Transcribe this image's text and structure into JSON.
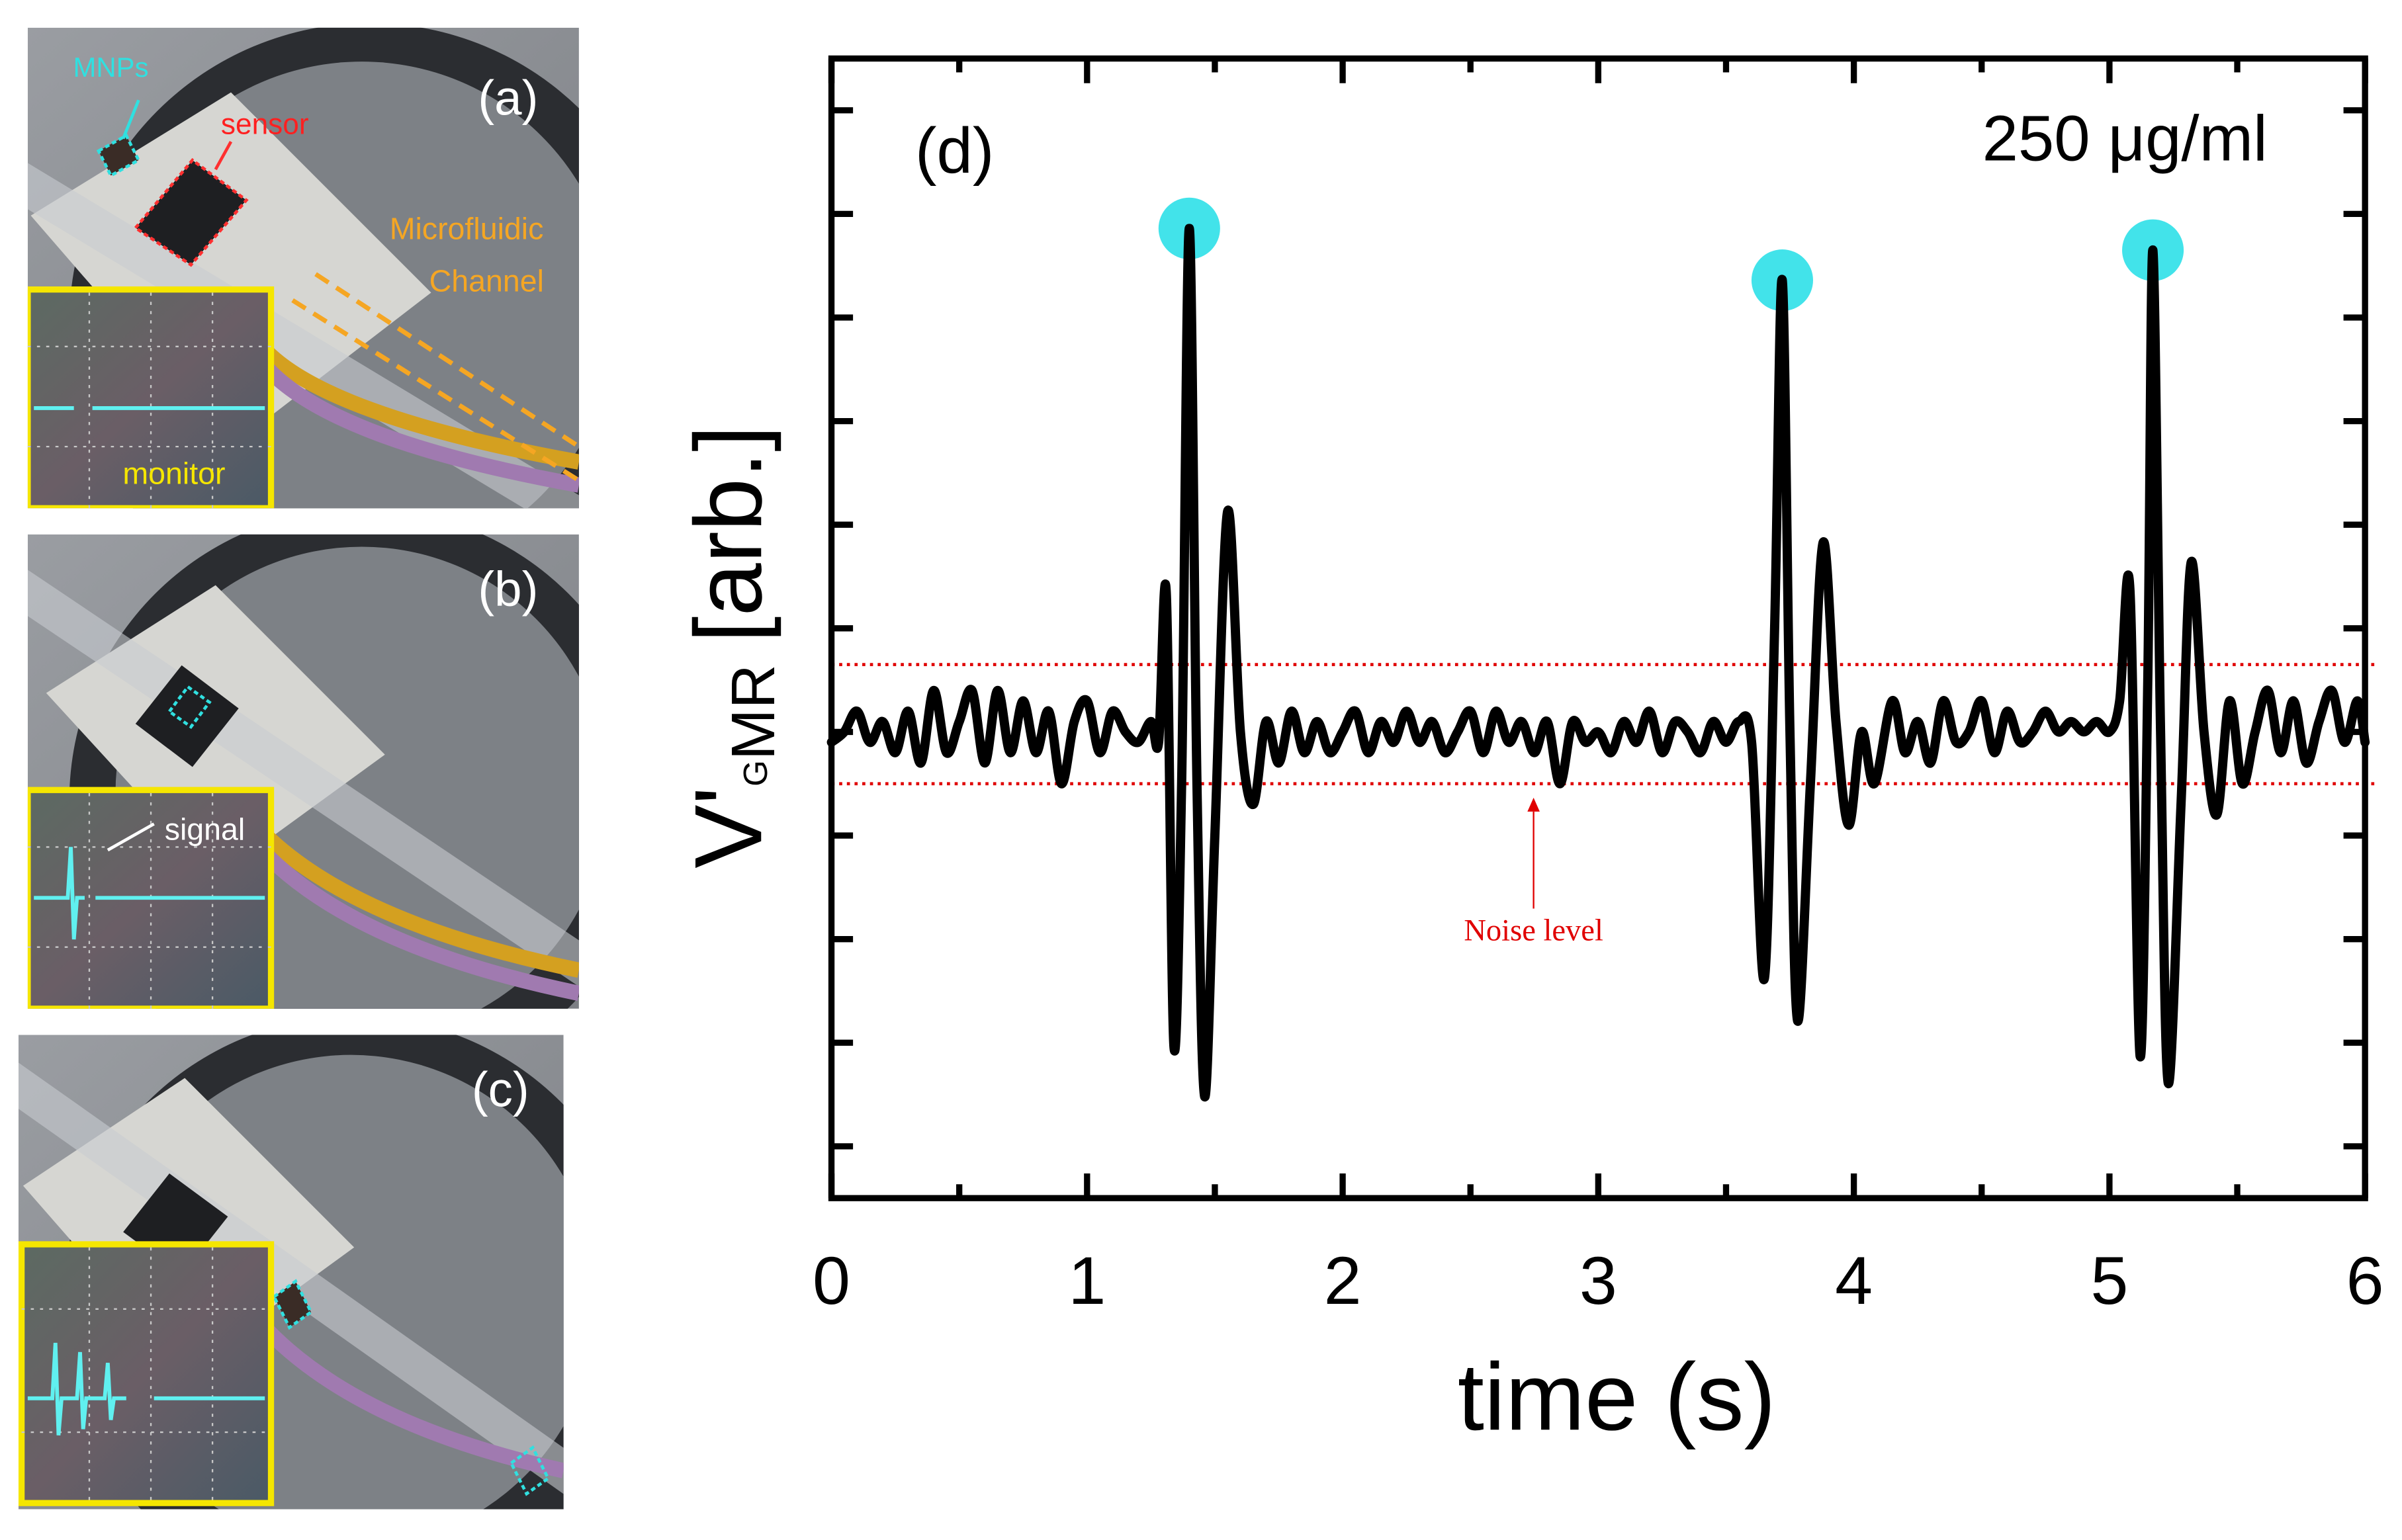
{
  "photo_panels": {
    "a": {
      "label": "(a)",
      "mnps": "MNPs",
      "sensor": "sensor",
      "channel": [
        "Microfluidic",
        "Channel"
      ],
      "monitor": "monitor"
    },
    "b": {
      "label": "(b)",
      "signal": "signal"
    },
    "c": {
      "label": "(c)"
    }
  },
  "chart_data": {
    "type": "line",
    "panel_label": "(d)",
    "concentration": "250 μg/ml",
    "x_label": "time (s)",
    "y_label": {
      "main": "V'",
      "sub_small": "G",
      "sub": "MR",
      "unit": "[arb.]"
    },
    "annotation": "Noise level",
    "xlim": [
      0,
      6
    ],
    "xticks": [
      0,
      1,
      2,
      3,
      4,
      5,
      6
    ],
    "xminor_ticks": [
      0.5,
      1.5,
      2.5,
      3.5,
      4.5,
      5.5
    ],
    "ylim": [
      0,
      11
    ],
    "yticks": [
      0.5,
      1.5,
      2.5,
      3.5,
      4.5,
      5.5,
      6.5,
      7.5,
      8.5,
      9.5,
      10.5
    ],
    "noise_lines": [
      5.15,
      4.0
    ],
    "noise_color": "#e00000",
    "color": "#000000",
    "x": [
      0,
      0.05,
      0.1,
      0.15,
      0.2,
      0.25,
      0.3,
      0.35,
      0.4,
      0.45,
      0.5,
      0.55,
      0.6,
      0.65,
      0.7,
      0.75,
      0.8,
      0.85,
      0.9,
      0.95,
      1.0,
      1.05,
      1.1,
      1.15,
      1.2,
      1.25,
      1.28,
      1.31,
      1.34,
      1.37,
      1.4,
      1.43,
      1.46,
      1.5,
      1.55,
      1.6,
      1.65,
      1.7,
      1.75,
      1.8,
      1.85,
      1.9,
      1.95,
      2.0,
      2.05,
      2.1,
      2.15,
      2.2,
      2.25,
      2.3,
      2.35,
      2.4,
      2.45,
      2.5,
      2.55,
      2.6,
      2.65,
      2.7,
      2.75,
      2.8,
      2.85,
      2.9,
      2.95,
      3.0,
      3.05,
      3.1,
      3.15,
      3.2,
      3.25,
      3.3,
      3.35,
      3.4,
      3.45,
      3.5,
      3.55,
      3.6,
      3.65,
      3.69,
      3.72,
      3.75,
      3.78,
      3.83,
      3.88,
      3.93,
      3.98,
      4.03,
      4.08,
      4.15,
      4.2,
      4.25,
      4.3,
      4.35,
      4.4,
      4.45,
      4.5,
      4.55,
      4.6,
      4.65,
      4.7,
      4.75,
      4.8,
      4.85,
      4.9,
      4.95,
      5.0,
      5.04,
      5.08,
      5.12,
      5.15,
      5.17,
      5.2,
      5.23,
      5.28,
      5.32,
      5.37,
      5.42,
      5.47,
      5.52,
      5.57,
      5.62,
      5.67,
      5.72,
      5.77,
      5.82,
      5.87,
      5.92,
      5.97,
      6.0
    ],
    "values": [
      4.4,
      4.5,
      4.7,
      4.4,
      4.6,
      4.3,
      4.7,
      4.2,
      4.9,
      4.3,
      4.6,
      4.9,
      4.2,
      4.9,
      4.3,
      4.8,
      4.3,
      4.7,
      4.0,
      4.6,
      4.8,
      4.3,
      4.7,
      4.5,
      4.4,
      4.6,
      4.4,
      5.84,
      1.46,
      4.0,
      9.36,
      4.0,
      0.98,
      3.5,
      6.63,
      4.5,
      3.8,
      4.6,
      4.2,
      4.7,
      4.3,
      4.6,
      4.3,
      4.5,
      4.7,
      4.3,
      4.6,
      4.4,
      4.7,
      4.4,
      4.6,
      4.3,
      4.5,
      4.7,
      4.3,
      4.7,
      4.4,
      4.6,
      4.3,
      4.6,
      4.0,
      4.6,
      4.4,
      4.5,
      4.3,
      4.6,
      4.4,
      4.7,
      4.3,
      4.6,
      4.5,
      4.3,
      4.6,
      4.4,
      4.6,
      4.4,
      2.12,
      5.5,
      8.86,
      4.5,
      1.71,
      4.0,
      6.33,
      4.6,
      3.6,
      4.5,
      4.0,
      4.8,
      4.3,
      4.6,
      4.2,
      4.8,
      4.4,
      4.5,
      4.8,
      4.3,
      4.7,
      4.4,
      4.5,
      4.7,
      4.5,
      4.6,
      4.5,
      4.6,
      4.5,
      4.8,
      5.88,
      1.37,
      5.0,
      9.15,
      4.5,
      1.11,
      3.8,
      6.14,
      4.5,
      3.7,
      4.8,
      4.0,
      4.5,
      4.9,
      4.3,
      4.8,
      4.2,
      4.6,
      4.9,
      4.4,
      4.8,
      4.4
    ],
    "peaks": {
      "color": "#2ee0e8",
      "x": [
        1.4,
        3.72,
        5.17
      ],
      "values": [
        9.36,
        8.86,
        9.15
      ]
    }
  }
}
